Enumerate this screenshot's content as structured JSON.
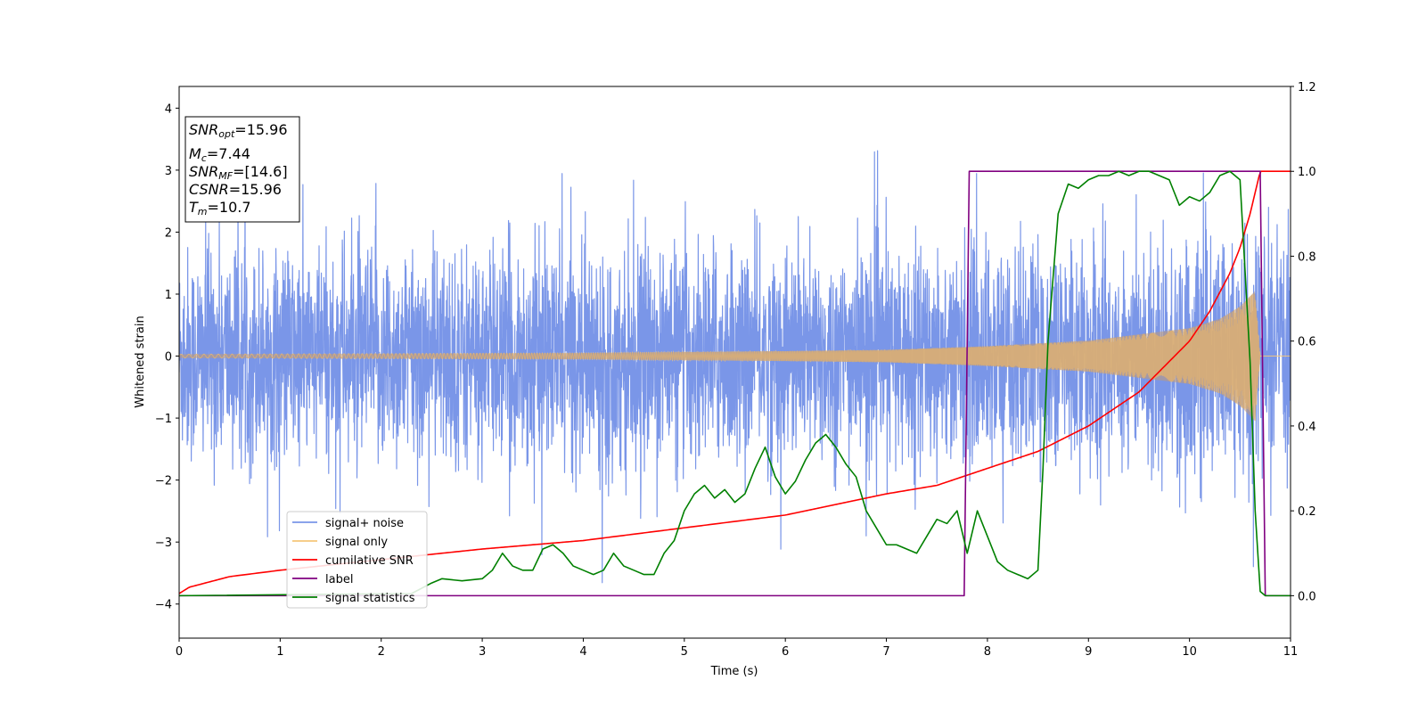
{
  "chart_data": {
    "type": "line",
    "xlabel": "Time (s)",
    "ylabel_left": "Whitened strain",
    "ylabel_right": "",
    "xlim": [
      0,
      11
    ],
    "ylim_left": [
      -4.55,
      4.35
    ],
    "ylim_right": [
      -0.1,
      1.2
    ],
    "x_ticks": [
      0,
      1,
      2,
      3,
      4,
      5,
      6,
      7,
      8,
      9,
      10,
      11
    ],
    "y_ticks_left": [
      -4,
      -3,
      -2,
      -1,
      0,
      1,
      2,
      3,
      4
    ],
    "y_ticks_right": [
      0.0,
      0.2,
      0.4,
      0.6,
      0.8,
      1.0,
      1.2
    ],
    "y_ticks_right_labels": [
      "0.0",
      "0.2",
      "0.4",
      "0.6",
      "0.8",
      "1.0",
      "1.2"
    ],
    "legend_placement": "lower-left",
    "annotation": {
      "snr_opt": {
        "sym": "SNR",
        "sub": "opt",
        "value": "=15.96"
      },
      "mc": {
        "sym": "M",
        "sub": "c",
        "value": "=7.44"
      },
      "snr_mf": {
        "sym": "SNR",
        "sub": "MF",
        "value": "=[14.6]"
      },
      "csnr": {
        "sym": "CSNR",
        "value": "=15.96"
      },
      "tm": {
        "sym": "T",
        "sub": "m",
        "value": "=10.7"
      }
    },
    "series": [
      {
        "name": "signal+ noise",
        "axis": "left",
        "color": "#7a96e8",
        "description_values": {
          "std": 0.85,
          "range": [
            -4.2,
            3.7
          ]
        }
      },
      {
        "name": "signal only",
        "axis": "left",
        "color": "#f5c77a",
        "envelope": {
          "x": [
            0,
            2,
            4,
            6,
            7,
            8,
            9,
            10,
            10.3,
            10.5,
            10.65,
            10.7
          ],
          "amp": [
            0.03,
            0.04,
            0.05,
            0.08,
            0.1,
            0.16,
            0.25,
            0.45,
            0.6,
            0.8,
            1.05,
            0.0
          ]
        }
      },
      {
        "name": "cumilative SNR",
        "axis": "right",
        "color": "#ff0000",
        "x": [
          0,
          0.1,
          0.5,
          1,
          2,
          3,
          4,
          5,
          6,
          7,
          7.5,
          8,
          8.5,
          9,
          9.5,
          10,
          10.2,
          10.4,
          10.5,
          10.6,
          10.7,
          11
        ],
        "y": [
          0.005,
          0.02,
          0.045,
          0.06,
          0.085,
          0.11,
          0.13,
          0.16,
          0.19,
          0.24,
          0.26,
          0.3,
          0.34,
          0.4,
          0.48,
          0.6,
          0.67,
          0.76,
          0.82,
          0.9,
          1.0,
          1.0
        ]
      },
      {
        "name": "label",
        "axis": "right",
        "color": "#800080",
        "x": [
          0,
          7.77,
          7.82,
          10.7,
          10.75,
          11
        ],
        "y": [
          0,
          0,
          1.0,
          1.0,
          0,
          0
        ]
      },
      {
        "name": "signal statistics",
        "axis": "right",
        "color": "#008000",
        "x": [
          0,
          2.3,
          2.5,
          2.6,
          2.8,
          3.0,
          3.1,
          3.2,
          3.3,
          3.4,
          3.5,
          3.6,
          3.7,
          3.8,
          3.9,
          4.0,
          4.1,
          4.2,
          4.3,
          4.4,
          4.5,
          4.6,
          4.7,
          4.8,
          4.9,
          5.0,
          5.1,
          5.2,
          5.3,
          5.4,
          5.5,
          5.6,
          5.7,
          5.8,
          5.9,
          6.0,
          6.1,
          6.2,
          6.3,
          6.4,
          6.5,
          6.6,
          6.7,
          6.8,
          6.9,
          7.0,
          7.1,
          7.2,
          7.3,
          7.4,
          7.5,
          7.6,
          7.7,
          7.8,
          7.9,
          8.0,
          8.1,
          8.2,
          8.3,
          8.4,
          8.5,
          8.55,
          8.6,
          8.7,
          8.8,
          8.9,
          9.0,
          9.1,
          9.2,
          9.3,
          9.4,
          9.5,
          9.6,
          9.7,
          9.8,
          9.9,
          10.0,
          10.1,
          10.2,
          10.3,
          10.4,
          10.5,
          10.6,
          10.65,
          10.7,
          10.75,
          11
        ],
        "y": [
          0,
          0.005,
          0.03,
          0.04,
          0.035,
          0.04,
          0.06,
          0.1,
          0.07,
          0.06,
          0.06,
          0.11,
          0.12,
          0.1,
          0.07,
          0.06,
          0.05,
          0.06,
          0.1,
          0.07,
          0.06,
          0.05,
          0.05,
          0.1,
          0.13,
          0.2,
          0.24,
          0.26,
          0.23,
          0.25,
          0.22,
          0.24,
          0.3,
          0.35,
          0.28,
          0.24,
          0.27,
          0.32,
          0.36,
          0.38,
          0.35,
          0.31,
          0.28,
          0.2,
          0.16,
          0.12,
          0.12,
          0.11,
          0.1,
          0.14,
          0.18,
          0.17,
          0.2,
          0.1,
          0.2,
          0.14,
          0.08,
          0.06,
          0.05,
          0.04,
          0.06,
          0.3,
          0.6,
          0.9,
          0.97,
          0.96,
          0.98,
          0.99,
          0.99,
          1.0,
          0.99,
          1.0,
          1.0,
          0.99,
          0.98,
          0.92,
          0.94,
          0.93,
          0.95,
          0.99,
          1.0,
          0.98,
          0.55,
          0.2,
          0.01,
          0,
          0
        ]
      }
    ]
  }
}
